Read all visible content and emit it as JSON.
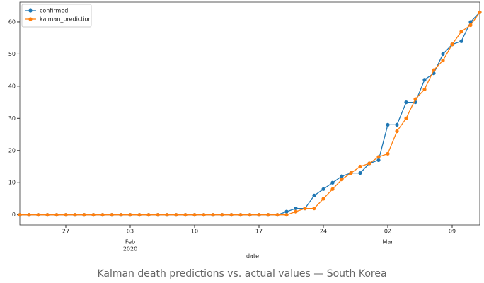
{
  "chart_data": {
    "type": "line",
    "caption": "Kalman death predictions vs. actual values — South Korea",
    "xlabel": "date",
    "x": [
      "2020-01-22",
      "2020-01-23",
      "2020-01-24",
      "2020-01-25",
      "2020-01-26",
      "2020-01-27",
      "2020-01-28",
      "2020-01-29",
      "2020-01-30",
      "2020-01-31",
      "2020-02-01",
      "2020-02-02",
      "2020-02-03",
      "2020-02-04",
      "2020-02-05",
      "2020-02-06",
      "2020-02-07",
      "2020-02-08",
      "2020-02-09",
      "2020-02-10",
      "2020-02-11",
      "2020-02-12",
      "2020-02-13",
      "2020-02-14",
      "2020-02-15",
      "2020-02-16",
      "2020-02-17",
      "2020-02-18",
      "2020-02-19",
      "2020-02-20",
      "2020-02-21",
      "2020-02-22",
      "2020-02-23",
      "2020-02-24",
      "2020-02-25",
      "2020-02-26",
      "2020-02-27",
      "2020-02-28",
      "2020-02-29",
      "2020-03-01",
      "2020-03-02",
      "2020-03-03",
      "2020-03-04",
      "2020-03-05",
      "2020-03-06",
      "2020-03-07",
      "2020-03-08",
      "2020-03-09",
      "2020-03-10",
      "2020-03-11",
      "2020-03-12"
    ],
    "series": [
      {
        "name": "confirmed",
        "color": "#1f77b4",
        "values": [
          0,
          0,
          0,
          0,
          0,
          0,
          0,
          0,
          0,
          0,
          0,
          0,
          0,
          0,
          0,
          0,
          0,
          0,
          0,
          0,
          0,
          0,
          0,
          0,
          0,
          0,
          0,
          0,
          0,
          1,
          2,
          2,
          6,
          8,
          10,
          12,
          13,
          13,
          16,
          17,
          28,
          28,
          35,
          35,
          42,
          44,
          50,
          53,
          54,
          60,
          63
        ]
      },
      {
        "name": "kalman_prediction",
        "color": "#ff7f0e",
        "values": [
          0,
          0,
          0,
          0,
          0,
          0,
          0,
          0,
          0,
          0,
          0,
          0,
          0,
          0,
          0,
          0,
          0,
          0,
          0,
          0,
          0,
          0,
          0,
          0,
          0,
          0,
          0,
          0,
          0,
          0,
          1,
          2,
          2,
          5,
          8,
          11,
          13,
          15,
          16,
          18,
          19,
          26,
          30,
          36,
          39,
          45,
          48,
          53,
          57,
          59,
          63
        ]
      }
    ],
    "xlim": [
      "2020-01-22",
      "2020-03-12"
    ],
    "xticks": [
      {
        "value": "2020-01-27",
        "label": "27"
      },
      {
        "value": "2020-02-03",
        "label": "03"
      },
      {
        "value": "2020-02-10",
        "label": "10"
      },
      {
        "value": "2020-02-17",
        "label": "17"
      },
      {
        "value": "2020-02-24",
        "label": "24"
      },
      {
        "value": "2020-03-02",
        "label": "02"
      },
      {
        "value": "2020-03-09",
        "label": "09"
      }
    ],
    "xticks_month": [
      {
        "value": "2020-02-03",
        "label": "Feb",
        "year": "2020"
      },
      {
        "value": "2020-03-02",
        "label": "Mar"
      }
    ],
    "ylim": [
      -3.15,
      66.15
    ],
    "yticks": [
      0,
      10,
      20,
      30,
      40,
      50,
      60
    ],
    "legend": "upper left"
  }
}
